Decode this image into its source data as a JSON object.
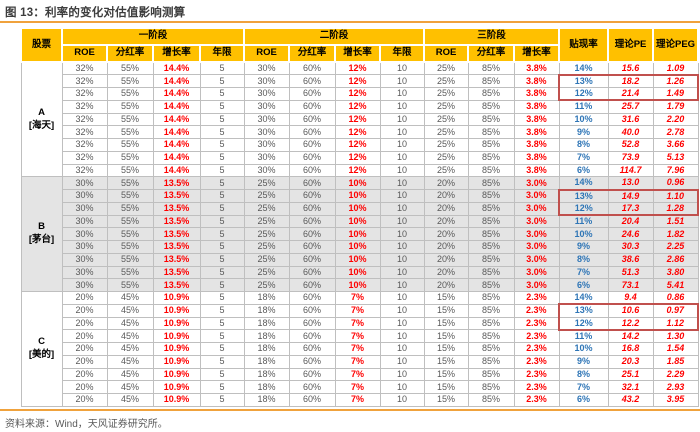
{
  "title": "图 13：利率的变化对估值影响测算",
  "footer": {
    "source": "资料来源：Wind，天风证券研究所。"
  },
  "colors": {
    "header_bg": "#FFC000",
    "accent_line": "#F0A23C",
    "growth_red": "#FF0000",
    "discount_blue": "#2E75B6",
    "body_gray": "#595959",
    "shaded_row": "#E4E4E4",
    "highlight_box": "#C0504D"
  },
  "table": {
    "header": {
      "stock": "股票",
      "stage_groups": [
        {
          "label": "一阶段",
          "cols": [
            "ROE",
            "分红率",
            "增长率",
            "年限"
          ]
        },
        {
          "label": "二阶段",
          "cols": [
            "ROE",
            "分红率",
            "增长率",
            "年限"
          ]
        },
        {
          "label": "三阶段",
          "cols": [
            "ROE",
            "分红率",
            "增长率"
          ]
        }
      ],
      "discount": "贴现率",
      "pe": "理论PE",
      "peg": "理论PEG"
    },
    "groups": [
      {
        "code": "A",
        "name": "[海天]",
        "shaded": false,
        "stage1": {
          "roe": "32%",
          "payout": "55%",
          "growth": "14.4%",
          "years": "5"
        },
        "stage2": {
          "roe": "30%",
          "payout": "60%",
          "growth": "12%",
          "years": "10"
        },
        "stage3": {
          "roe": "25%",
          "payout": "85%",
          "growth": "3.8%"
        },
        "rows": [
          {
            "discount": "14%",
            "pe": "15.6",
            "peg": "1.09",
            "box": ""
          },
          {
            "discount": "13%",
            "pe": "18.2",
            "peg": "1.26",
            "box": "start"
          },
          {
            "discount": "12%",
            "pe": "21.4",
            "peg": "1.49",
            "box": "end"
          },
          {
            "discount": "11%",
            "pe": "25.7",
            "peg": "1.79",
            "box": ""
          },
          {
            "discount": "10%",
            "pe": "31.6",
            "peg": "2.20",
            "box": ""
          },
          {
            "discount": "9%",
            "pe": "40.0",
            "peg": "2.78",
            "box": ""
          },
          {
            "discount": "8%",
            "pe": "52.8",
            "peg": "3.66",
            "box": ""
          },
          {
            "discount": "7%",
            "pe": "73.9",
            "peg": "5.13",
            "box": ""
          },
          {
            "discount": "6%",
            "pe": "114.7",
            "peg": "7.96",
            "box": ""
          }
        ]
      },
      {
        "code": "B",
        "name": "[茅台]",
        "shaded": true,
        "stage1": {
          "roe": "30%",
          "payout": "55%",
          "growth": "13.5%",
          "years": "5"
        },
        "stage2": {
          "roe": "25%",
          "payout": "60%",
          "growth": "10%",
          "years": "10"
        },
        "stage3": {
          "roe": "20%",
          "payout": "85%",
          "growth": "3.0%"
        },
        "rows": [
          {
            "discount": "14%",
            "pe": "13.0",
            "peg": "0.96",
            "box": ""
          },
          {
            "discount": "13%",
            "pe": "14.9",
            "peg": "1.10",
            "box": "start"
          },
          {
            "discount": "12%",
            "pe": "17.3",
            "peg": "1.28",
            "box": "end"
          },
          {
            "discount": "11%",
            "pe": "20.4",
            "peg": "1.51",
            "box": ""
          },
          {
            "discount": "10%",
            "pe": "24.6",
            "peg": "1.82",
            "box": ""
          },
          {
            "discount": "9%",
            "pe": "30.3",
            "peg": "2.25",
            "box": ""
          },
          {
            "discount": "8%",
            "pe": "38.6",
            "peg": "2.86",
            "box": ""
          },
          {
            "discount": "7%",
            "pe": "51.3",
            "peg": "3.80",
            "box": ""
          },
          {
            "discount": "6%",
            "pe": "73.1",
            "peg": "5.41",
            "box": ""
          }
        ]
      },
      {
        "code": "C",
        "name": "[美的]",
        "shaded": false,
        "stage1": {
          "roe": "20%",
          "payout": "45%",
          "growth": "10.9%",
          "years": "5"
        },
        "stage2": {
          "roe": "18%",
          "payout": "60%",
          "growth": "7%",
          "years": "10"
        },
        "stage3": {
          "roe": "15%",
          "payout": "85%",
          "growth": "2.3%"
        },
        "rows": [
          {
            "discount": "14%",
            "pe": "9.4",
            "peg": "0.86",
            "box": ""
          },
          {
            "discount": "13%",
            "pe": "10.6",
            "peg": "0.97",
            "box": "start"
          },
          {
            "discount": "12%",
            "pe": "12.2",
            "peg": "1.12",
            "box": "end"
          },
          {
            "discount": "11%",
            "pe": "14.2",
            "peg": "1.30",
            "box": ""
          },
          {
            "discount": "10%",
            "pe": "16.8",
            "peg": "1.54",
            "box": ""
          },
          {
            "discount": "9%",
            "pe": "20.3",
            "peg": "1.85",
            "box": ""
          },
          {
            "discount": "8%",
            "pe": "25.1",
            "peg": "2.29",
            "box": ""
          },
          {
            "discount": "7%",
            "pe": "32.1",
            "peg": "2.93",
            "box": ""
          },
          {
            "discount": "6%",
            "pe": "43.2",
            "peg": "3.95",
            "box": ""
          }
        ]
      }
    ]
  }
}
